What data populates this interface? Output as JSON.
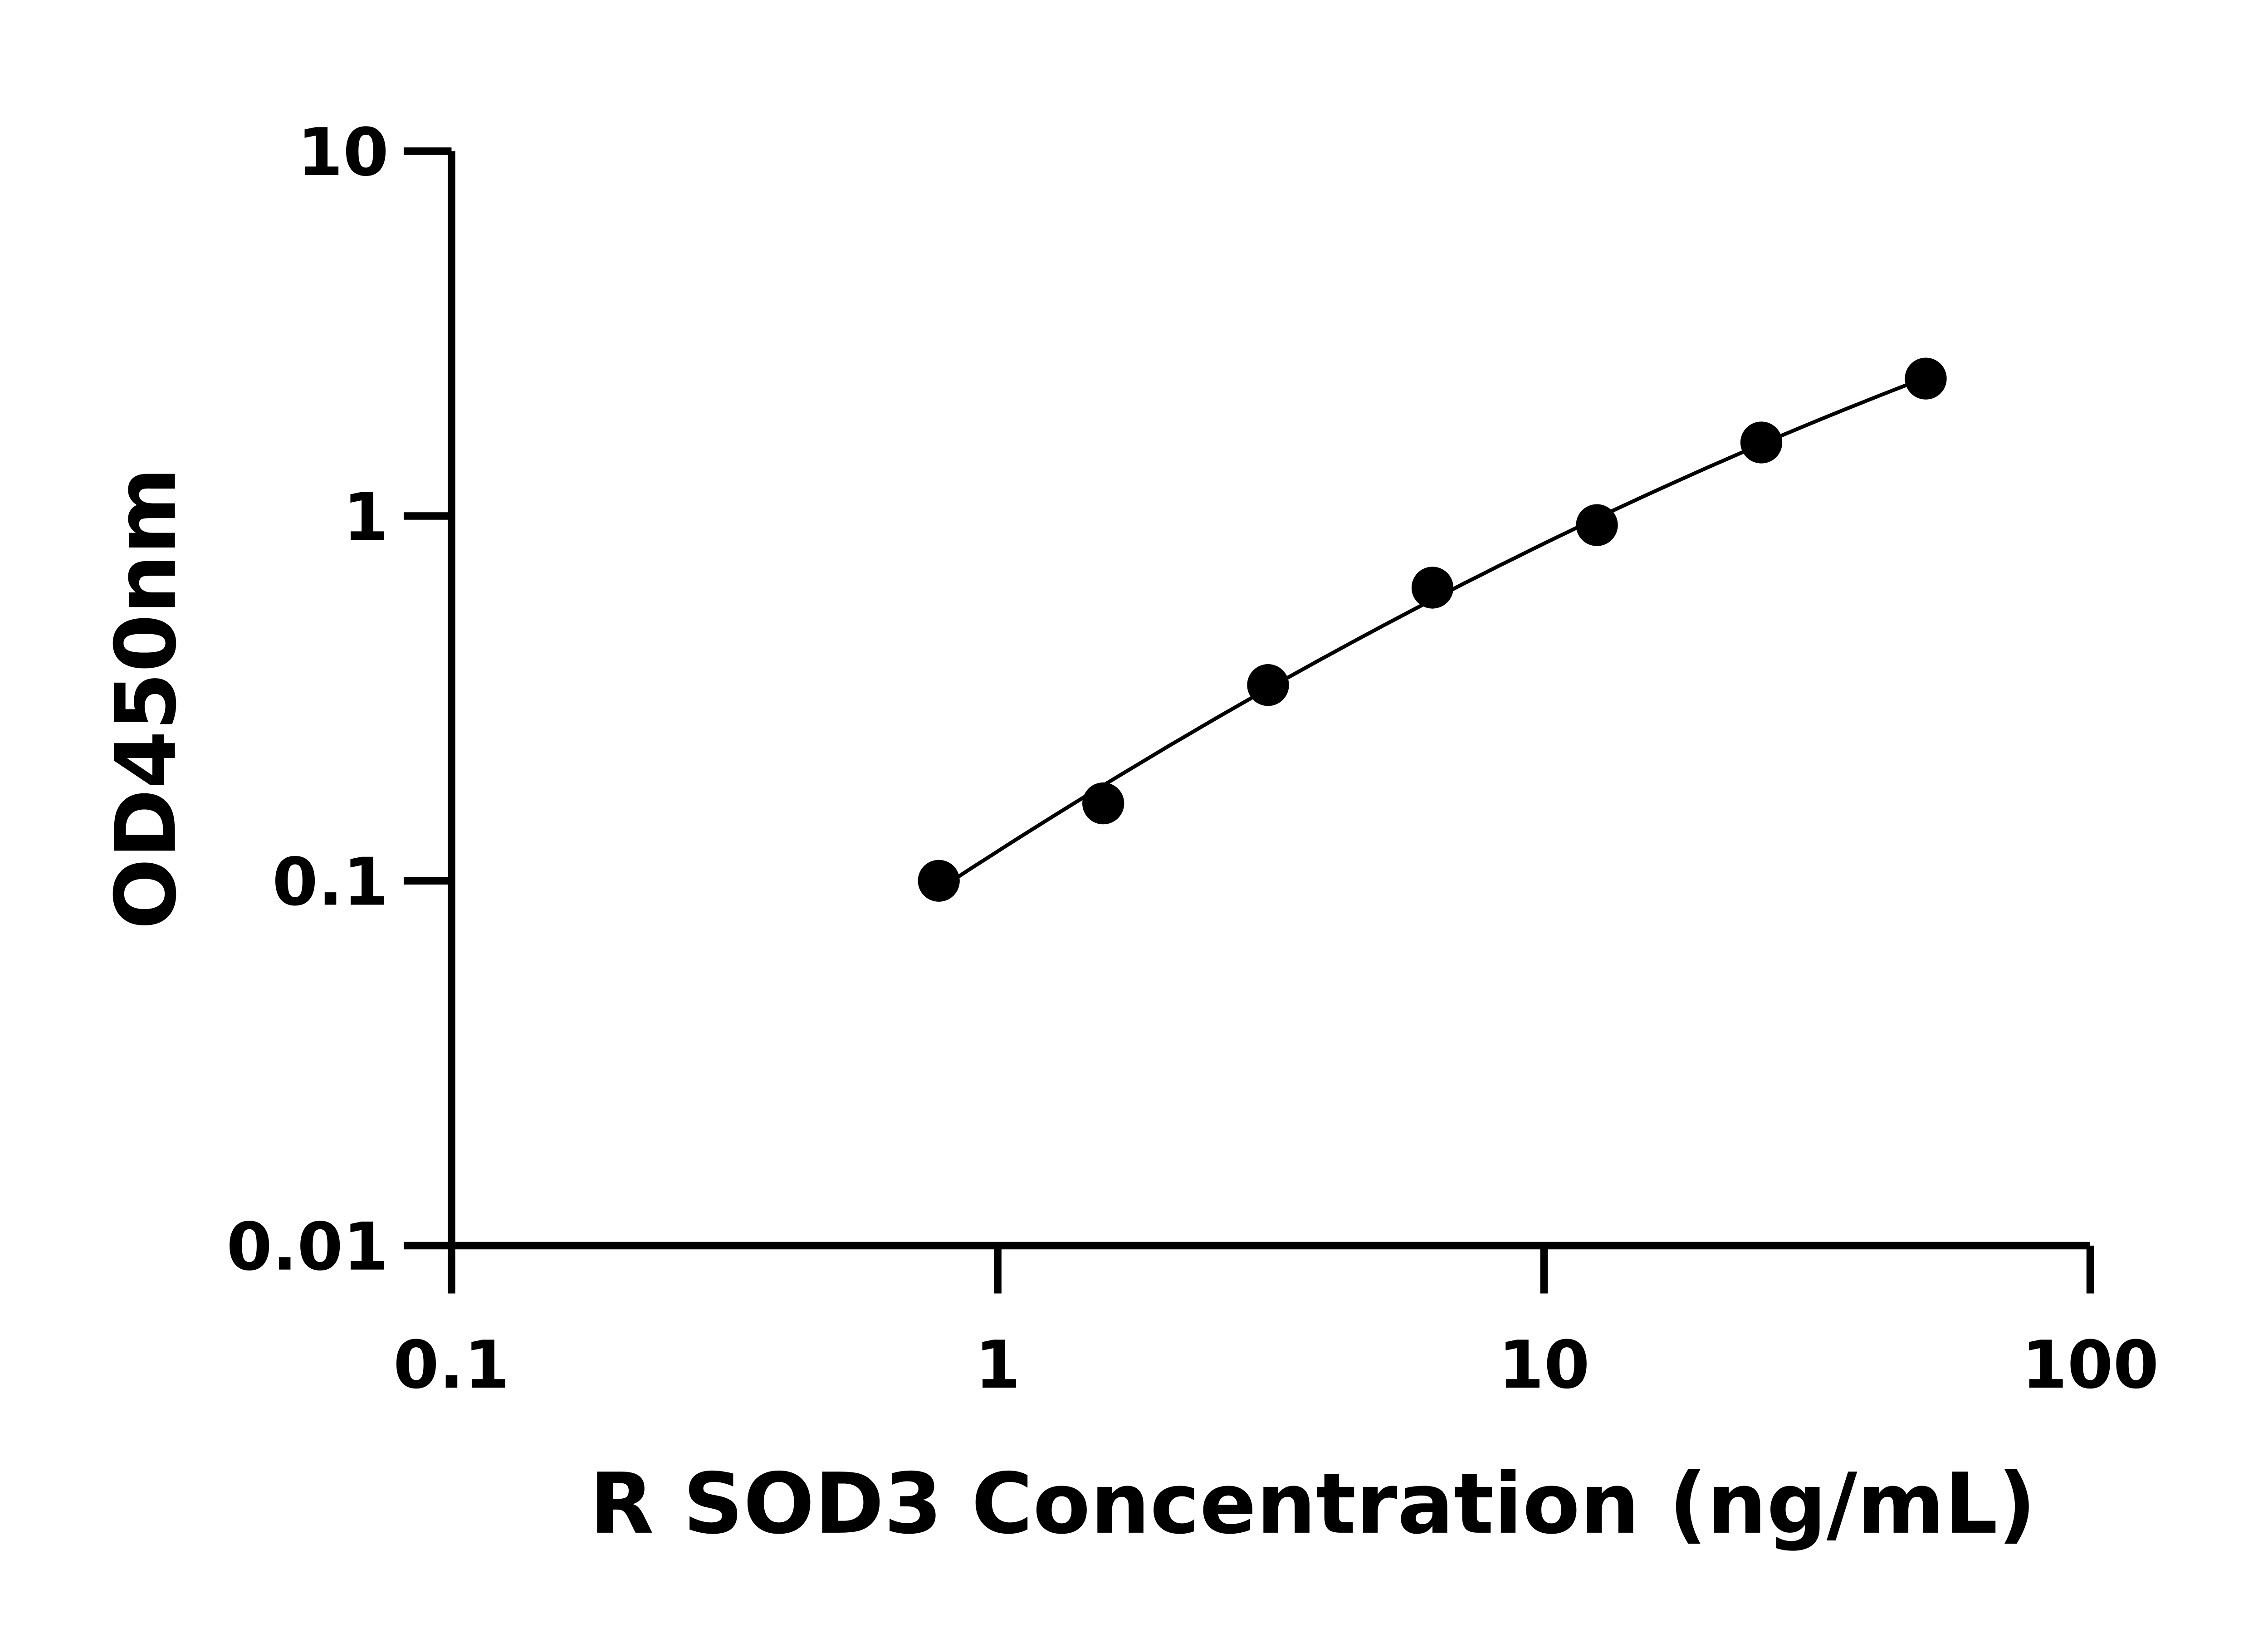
{
  "chart_data": {
    "type": "scatter",
    "title": "",
    "xlabel": "R SOD3 Concentration (ng/mL)",
    "ylabel": "OD450nm",
    "xscale": "log",
    "yscale": "log",
    "xlim": [
      0.1,
      100
    ],
    "ylim": [
      0.01,
      10
    ],
    "xticks": [
      "0.1",
      "1",
      "10",
      "100"
    ],
    "yticks": [
      "0.01",
      "0.1",
      "1",
      "10"
    ],
    "grid": false,
    "fit_line": true,
    "colors": {
      "points": "#000000",
      "line": "#000000"
    },
    "x": [
      0.78,
      1.56,
      3.125,
      6.25,
      12.5,
      25,
      50
    ],
    "y": [
      0.1,
      0.163,
      0.344,
      0.636,
      0.944,
      1.59,
      2.38
    ]
  }
}
